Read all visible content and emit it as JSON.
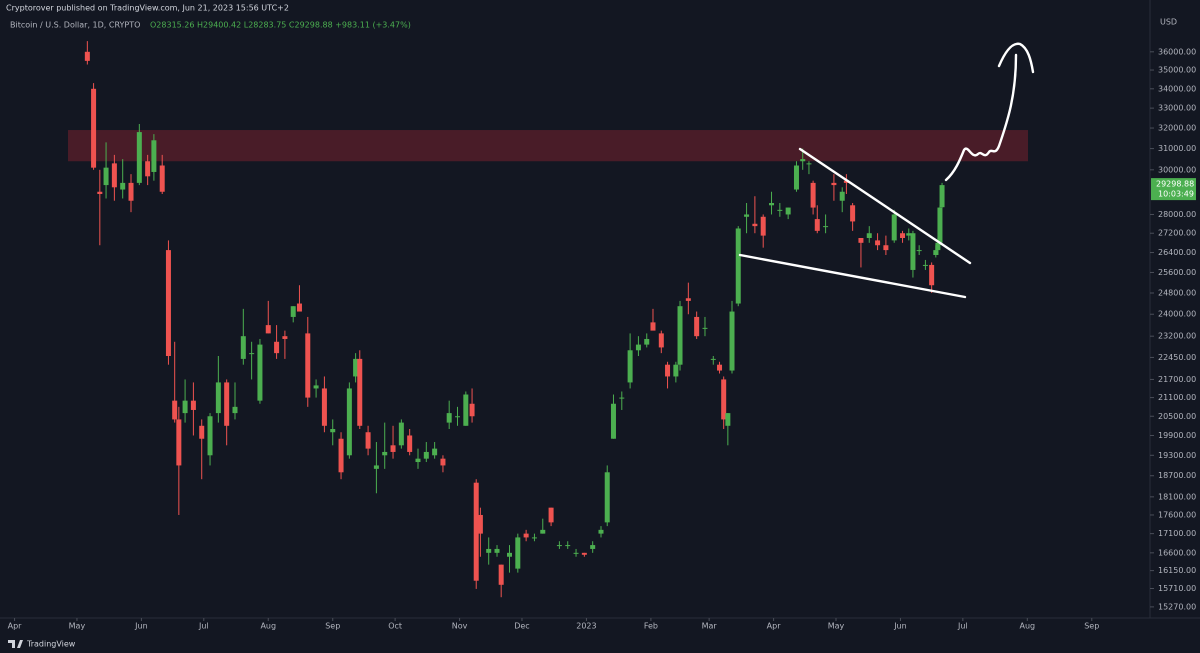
{
  "header": {
    "publisher": "Cryptorover published on TradingView.com, Jun 21, 2023 15:56 UTC+2",
    "symbol": "Bitcoin / U.S. Dollar, 1D, CRYPTO",
    "ohlc": "O28315.26 H29400.42 L28283.75 C29298.88 +983.11 (+3.47%)",
    "currency": "USD",
    "countdown": "10:03:49"
  },
  "footer": {
    "brand": "TradingView"
  },
  "chart_data": {
    "type": "candlestick",
    "log_scale": true,
    "up_color": "#4caf50",
    "down_color": "#ef5350",
    "xlim": [
      -7,
      546
    ],
    "ylim": [
      15010,
      39000
    ],
    "xticks": [
      {
        "value": 0,
        "label": "Apr"
      },
      {
        "value": 30,
        "label": "May"
      },
      {
        "value": 61,
        "label": "Jun"
      },
      {
        "value": 91,
        "label": "Jul"
      },
      {
        "value": 122,
        "label": "Aug"
      },
      {
        "value": 153,
        "label": "Sep"
      },
      {
        "value": 183,
        "label": "Oct"
      },
      {
        "value": 214,
        "label": "Nov"
      },
      {
        "value": 244,
        "label": "Dec"
      },
      {
        "value": 275,
        "label": "2023"
      },
      {
        "value": 306,
        "label": "Feb"
      },
      {
        "value": 334,
        "label": "Mar"
      },
      {
        "value": 365,
        "label": "Apr"
      },
      {
        "value": 395,
        "label": "May"
      },
      {
        "value": 426,
        "label": "Jun"
      },
      {
        "value": 456,
        "label": "Jul"
      },
      {
        "value": 487,
        "label": "Aug"
      },
      {
        "value": 518,
        "label": "Sep"
      }
    ],
    "yticks": [
      {
        "value": 36000,
        "label": "36000.00"
      },
      {
        "value": 35000,
        "label": "35000.00"
      },
      {
        "value": 34000,
        "label": "34000.00"
      },
      {
        "value": 33000,
        "label": "33000.00"
      },
      {
        "value": 32000,
        "label": "32000.00"
      },
      {
        "value": 31000,
        "label": "31000.00"
      },
      {
        "value": 30000,
        "label": "30000.00"
      },
      {
        "value": 28000,
        "label": "28000.00"
      },
      {
        "value": 27200,
        "label": "27200.00"
      },
      {
        "value": 26400,
        "label": "26400.00"
      },
      {
        "value": 25600,
        "label": "25600.00"
      },
      {
        "value": 24800,
        "label": "24800.00"
      },
      {
        "value": 24000,
        "label": "24000.00"
      },
      {
        "value": 23200,
        "label": "23200.00"
      },
      {
        "value": 22450,
        "label": "22450.00"
      },
      {
        "value": 21700,
        "label": "21700.00"
      },
      {
        "value": 21100,
        "label": "21100.00"
      },
      {
        "value": 20500,
        "label": "20500.00"
      },
      {
        "value": 19900,
        "label": "19900.00"
      },
      {
        "value": 19300,
        "label": "19300.00"
      },
      {
        "value": 18700,
        "label": "18700.00"
      },
      {
        "value": 18100,
        "label": "18100.00"
      },
      {
        "value": 17600,
        "label": "17600.00"
      },
      {
        "value": 17100,
        "label": "17100.00"
      },
      {
        "value": 16600,
        "label": "16600.00"
      },
      {
        "value": 16150,
        "label": "16150.00"
      },
      {
        "value": 15710,
        "label": "15710.00"
      },
      {
        "value": 15270,
        "label": "15270.00"
      }
    ],
    "zone": {
      "low": 30400,
      "high": 31900,
      "color": "#5c1f2b"
    },
    "x": [
      35,
      38,
      41,
      44,
      48,
      52,
      56,
      60,
      64,
      67,
      71,
      74,
      77,
      79,
      82,
      86,
      90,
      94,
      98,
      102,
      106,
      110,
      114,
      118,
      122,
      126,
      130,
      134,
      137,
      141,
      145,
      149,
      153,
      157,
      161,
      164,
      166,
      170,
      174,
      178,
      182,
      186,
      190,
      194,
      198,
      202,
      206,
      209,
      213,
      217,
      220,
      222,
      224,
      228,
      232,
      234,
      238,
      242,
      246,
      250,
      254,
      258,
      262,
      266,
      270,
      274,
      278,
      282,
      285,
      288,
      292,
      296,
      300,
      304,
      307,
      311,
      314,
      318,
      320,
      324,
      328,
      332,
      336,
      339,
      341,
      343,
      345,
      348,
      352,
      356,
      360,
      364,
      368,
      372,
      376,
      379,
      382,
      384,
      386,
      390,
      394,
      398,
      400,
      403,
      407,
      411,
      415,
      419,
      423,
      427,
      430,
      432,
      435,
      438,
      441,
      443,
      444,
      445,
      446
    ],
    "open": [
      36000,
      34000,
      29000,
      29300,
      30300,
      29100,
      29400,
      29400,
      30400,
      29900,
      30200,
      26500,
      21000,
      20400,
      20600,
      21000,
      20200,
      19300,
      20600,
      21600,
      20600,
      22400,
      22600,
      21000,
      23600,
      23000,
      23200,
      23900,
      24400,
      23300,
      21400,
      21400,
      20000,
      19800,
      19300,
      21800,
      22400,
      20000,
      18900,
      19300,
      19600,
      19600,
      19900,
      19100,
      19200,
      19300,
      19200,
      20300,
      20500,
      20200,
      20900,
      18500,
      17600,
      16600,
      16600,
      16300,
      16500,
      16200,
      17100,
      17000,
      17100,
      17800,
      16800,
      16800,
      16600,
      16600,
      16700,
      17100,
      17400,
      19800,
      21100,
      21600,
      22700,
      22900,
      23700,
      23300,
      22200,
      21800,
      22200,
      24600,
      23900,
      23500,
      22400,
      22200,
      21700,
      20200,
      22000,
      24400,
      27900,
      27600,
      27900,
      28400,
      28200,
      28000,
      29100,
      30400,
      30300,
      29400,
      27800,
      27500,
      29400,
      28600,
      29500,
      28400,
      27000,
      27000,
      26900,
      26700,
      26900,
      27200,
      27100,
      25700,
      26500,
      25900,
      25900,
      26300,
      26500,
      26800,
      28315.26
    ],
    "high": [
      36600,
      34300,
      30000,
      31300,
      30700,
      30500,
      29800,
      32200,
      30700,
      31700,
      30700,
      26900,
      23000,
      20800,
      21700,
      21600,
      20400,
      20600,
      22500,
      21700,
      21600,
      24200,
      23000,
      23100,
      24500,
      23600,
      23400,
      24300,
      25100,
      23900,
      21700,
      21800,
      20400,
      20000,
      21600,
      22600,
      22700,
      20200,
      19700,
      20300,
      20200,
      20400,
      20100,
      19500,
      19700,
      19700,
      19300,
      21000,
      20800,
      21300,
      21400,
      18600,
      17800,
      17000,
      16800,
      16300,
      16800,
      17100,
      17200,
      17100,
      17500,
      17800,
      16900,
      16900,
      16700,
      16600,
      16900,
      17300,
      19000,
      21200,
      21300,
      23300,
      23200,
      23300,
      24200,
      23400,
      22300,
      22300,
      24500,
      25200,
      24100,
      23900,
      22500,
      22300,
      21800,
      20600,
      24500,
      27500,
      28500,
      28800,
      28000,
      29000,
      28500,
      28300,
      30400,
      31000,
      30400,
      29500,
      28400,
      28000,
      29800,
      29200,
      29800,
      28500,
      27000,
      27500,
      27200,
      27100,
      28200,
      27300,
      27400,
      27300,
      26700,
      26100,
      26000,
      26700,
      27000,
      28400,
      29400.42
    ],
    "low": [
      35300,
      30000,
      26700,
      28700,
      28600,
      28700,
      28100,
      29300,
      29300,
      29500,
      28900,
      22200,
      20300,
      17600,
      20300,
      19900,
      18600,
      19000,
      20300,
      19600,
      20400,
      22200,
      21700,
      20900,
      23300,
      22400,
      22400,
      23700,
      24200,
      20800,
      21100,
      20000,
      19600,
      18600,
      19200,
      21600,
      20100,
      19300,
      18200,
      18900,
      19200,
      19500,
      19300,
      18900,
      19100,
      19200,
      18800,
      20100,
      20200,
      20200,
      20300,
      15700,
      16500,
      16300,
      16500,
      15500,
      16100,
      16100,
      16900,
      16900,
      17100,
      17300,
      16700,
      16700,
      16500,
      16500,
      16600,
      17000,
      17300,
      19800,
      20700,
      21400,
      22500,
      22800,
      23500,
      22600,
      21400,
      21600,
      22000,
      24000,
      23100,
      23200,
      22200,
      21900,
      20100,
      19600,
      21900,
      24300,
      27200,
      27200,
      26600,
      28000,
      27900,
      27800,
      29000,
      30000,
      29800,
      28000,
      27200,
      27200,
      28600,
      28100,
      28900,
      27300,
      25800,
      26800,
      26500,
      26300,
      26800,
      26800,
      26900,
      25400,
      26300,
      25700,
      24800,
      26200,
      26300,
      26700,
      28283.75
    ],
    "close": [
      35500,
      30100,
      28900,
      30100,
      29200,
      29400,
      28600,
      31800,
      29700,
      31400,
      29000,
      22500,
      20400,
      19000,
      21000,
      20700,
      19800,
      20500,
      21600,
      20200,
      20800,
      23200,
      22600,
      22900,
      23300,
      22600,
      23100,
      24300,
      24100,
      21100,
      21500,
      20200,
      20100,
      18800,
      21400,
      22400,
      20200,
      19500,
      19000,
      19400,
      19400,
      20300,
      19400,
      19200,
      19400,
      19500,
      19000,
      20600,
      20500,
      21200,
      20500,
      15900,
      17100,
      16700,
      16700,
      15800,
      16600,
      17000,
      17000,
      17000,
      17200,
      17400,
      16800,
      16800,
      16600,
      16550,
      16800,
      17200,
      18800,
      20900,
      21100,
      22700,
      22900,
      23100,
      23400,
      22800,
      21800,
      22200,
      24300,
      24500,
      23200,
      23500,
      22400,
      22000,
      20400,
      20600,
      24100,
      27400,
      28000,
      27500,
      27100,
      28500,
      28200,
      28300,
      30200,
      30500,
      30300,
      28300,
      27300,
      27500,
      29300,
      29000,
      29400,
      27700,
      26800,
      27200,
      26700,
      26500,
      28000,
      27000,
      27200,
      27200,
      26500,
      25900,
      25100,
      26500,
      26800,
      28300,
      29298.88
    ]
  }
}
